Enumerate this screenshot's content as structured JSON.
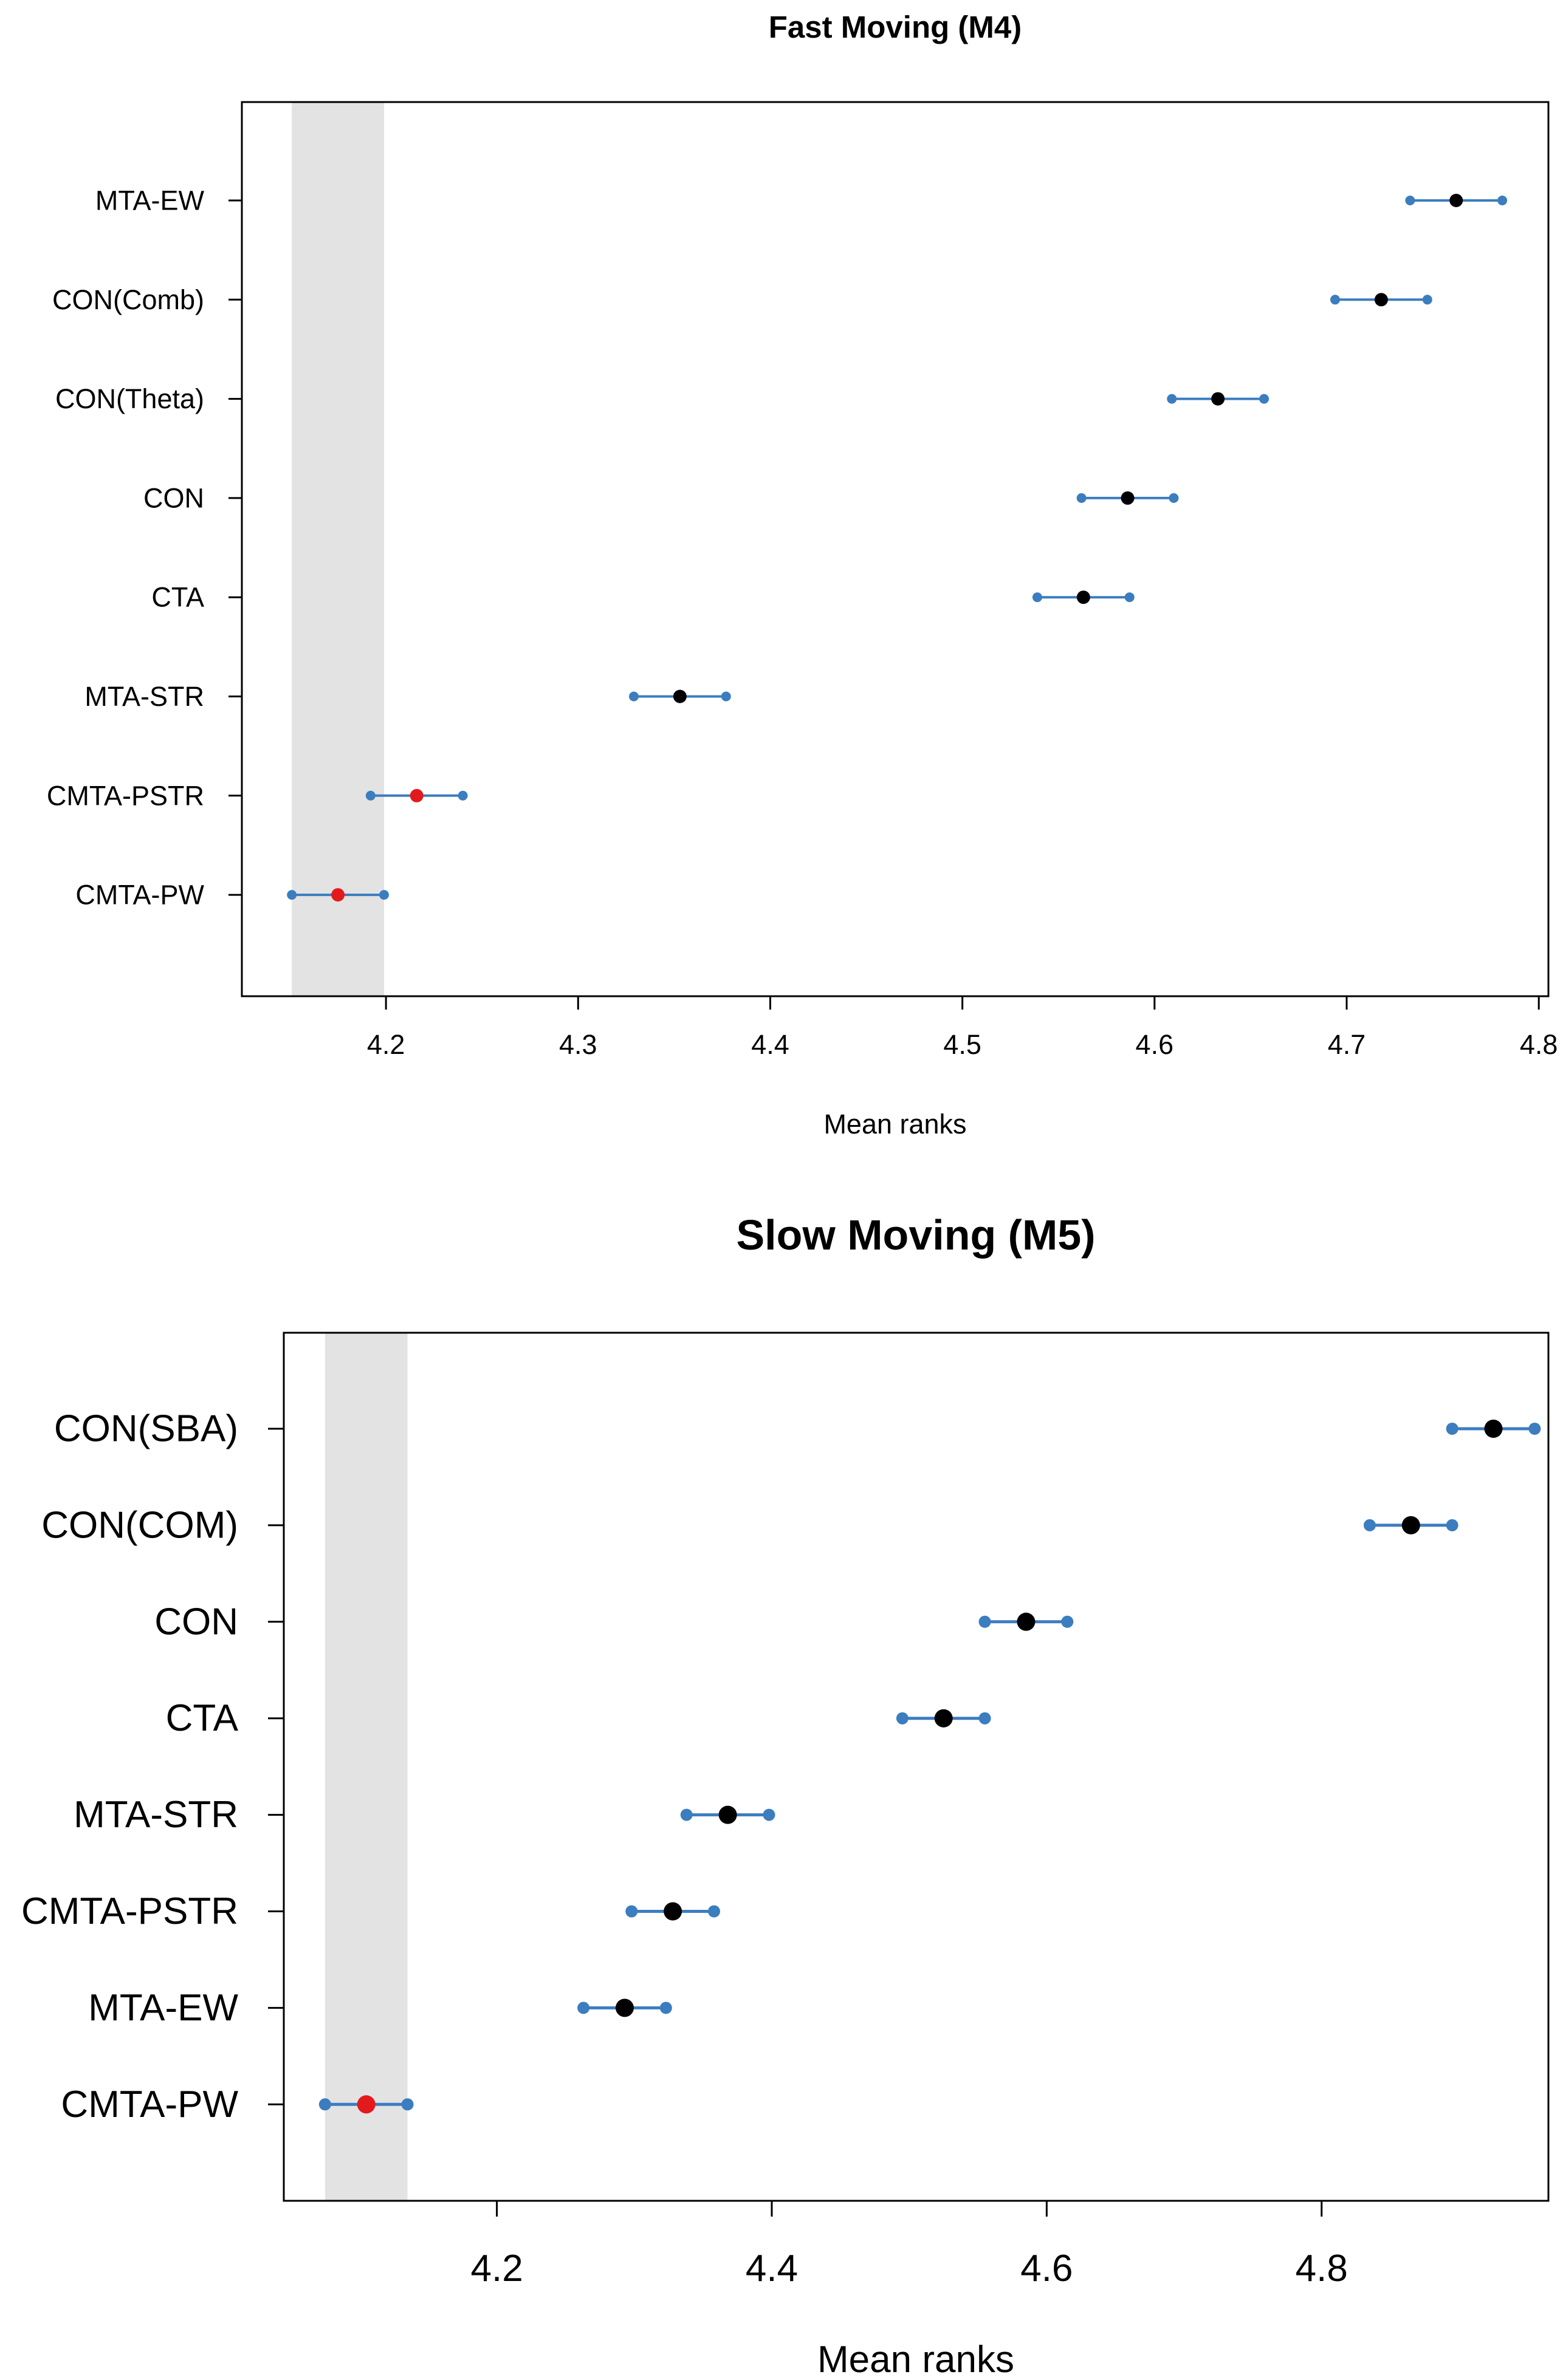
{
  "chart_data": [
    {
      "type": "scatter",
      "title": "Fast Moving (M4)",
      "xlabel": "Mean ranks",
      "ylabel": "",
      "xlim": [
        4.125,
        4.805
      ],
      "x_ticks": [
        "4.2",
        "4.3",
        "4.4",
        "4.5",
        "4.6",
        "4.7",
        "4.8"
      ],
      "shaded_interval": [
        4.151,
        4.199
      ],
      "colors": {
        "interval": "#3b7dbf",
        "mean": "#000000",
        "highlight": "#e31a1c",
        "shade": "#e3e3e3"
      },
      "series": [
        {
          "name": "MTA-EW",
          "mean": 4.757,
          "lower": 4.733,
          "upper": 4.781,
          "highlight": false
        },
        {
          "name": "CON(Comb)",
          "mean": 4.718,
          "lower": 4.694,
          "upper": 4.742,
          "highlight": false
        },
        {
          "name": "CON(Theta)",
          "mean": 4.633,
          "lower": 4.609,
          "upper": 4.657,
          "highlight": false
        },
        {
          "name": "CON",
          "mean": 4.586,
          "lower": 4.562,
          "upper": 4.61,
          "highlight": false
        },
        {
          "name": "CTA",
          "mean": 4.563,
          "lower": 4.539,
          "upper": 4.587,
          "highlight": false
        },
        {
          "name": "MTA-STR",
          "mean": 4.353,
          "lower": 4.329,
          "upper": 4.377,
          "highlight": false
        },
        {
          "name": "CMTA-PSTR",
          "mean": 4.216,
          "lower": 4.192,
          "upper": 4.24,
          "highlight": true
        },
        {
          "name": "CMTA-PW",
          "mean": 4.175,
          "lower": 4.151,
          "upper": 4.199,
          "highlight": true
        }
      ]
    },
    {
      "type": "scatter",
      "title": "Slow Moving (M5)",
      "xlabel": "Mean ranks",
      "ylabel": "",
      "xlim": [
        4.045,
        4.965
      ],
      "x_ticks": [
        "4.2",
        "4.4",
        "4.6",
        "4.8"
      ],
      "shaded_interval": [
        4.075,
        4.135
      ],
      "colors": {
        "interval": "#3b7dbf",
        "mean": "#000000",
        "highlight": "#e31a1c",
        "shade": "#e3e3e3"
      },
      "series": [
        {
          "name": "CON(SBA)",
          "mean": 4.925,
          "lower": 4.895,
          "upper": 4.955,
          "highlight": false
        },
        {
          "name": "CON(COM)",
          "mean": 4.865,
          "lower": 4.835,
          "upper": 4.895,
          "highlight": false
        },
        {
          "name": "CON",
          "mean": 4.585,
          "lower": 4.555,
          "upper": 4.615,
          "highlight": false
        },
        {
          "name": "CTA",
          "mean": 4.525,
          "lower": 4.495,
          "upper": 4.555,
          "highlight": false
        },
        {
          "name": "MTA-STR",
          "mean": 4.368,
          "lower": 4.338,
          "upper": 4.398,
          "highlight": false
        },
        {
          "name": "CMTA-PSTR",
          "mean": 4.328,
          "lower": 4.298,
          "upper": 4.358,
          "highlight": false
        },
        {
          "name": "MTA-EW",
          "mean": 4.293,
          "lower": 4.263,
          "upper": 4.323,
          "highlight": false
        },
        {
          "name": "CMTA-PW",
          "mean": 4.105,
          "lower": 4.075,
          "upper": 4.135,
          "highlight": true
        }
      ]
    }
  ]
}
